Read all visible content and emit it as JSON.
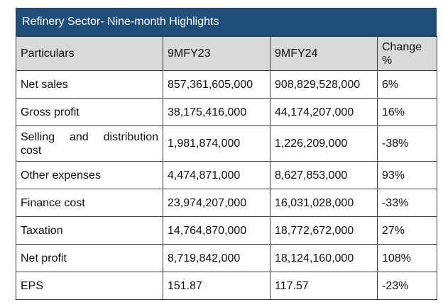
{
  "table": {
    "title": "Refinery Sector- Nine-month Highlights",
    "headers": [
      "Particulars",
      "9MFY23",
      "9MFY24",
      "Change %"
    ],
    "rows": [
      {
        "particular": "Net sales",
        "fy23": "857,361,605,000",
        "fy24": "908,829,528,000",
        "change": "6%"
      },
      {
        "particular": "Gross profit",
        "fy23": "38,175,416,000",
        "fy24": "44,174,207,000",
        "change": "16%"
      },
      {
        "particular": "Selling and distribution cost",
        "fy23": "1,981,874,000",
        "fy24": "1,226,209,000",
        "change": "-38%"
      },
      {
        "particular": "Other expenses",
        "fy23": "4,474,871,000",
        "fy24": "8,627,853,000",
        "change": "93%"
      },
      {
        "particular": "Finance cost",
        "fy23": "23,974,207,000",
        "fy24": "16,031,028,000",
        "change": "-33%"
      },
      {
        "particular": "Taxation",
        "fy23": "14,764,870,000",
        "fy24": "18,772,672,000",
        "change": "27%"
      },
      {
        "particular": "Net profit",
        "fy23": "8,719,842,000",
        "fy24": "18,124,160,000",
        "change": "108%"
      },
      {
        "particular": "EPS",
        "fy23": "151.87",
        "fy24": "117.57",
        "change": "-23%"
      }
    ]
  },
  "colors": {
    "title_bg": "#1f4e79",
    "header_bg": "#d9d9d9",
    "border": "#3a3a3a"
  }
}
